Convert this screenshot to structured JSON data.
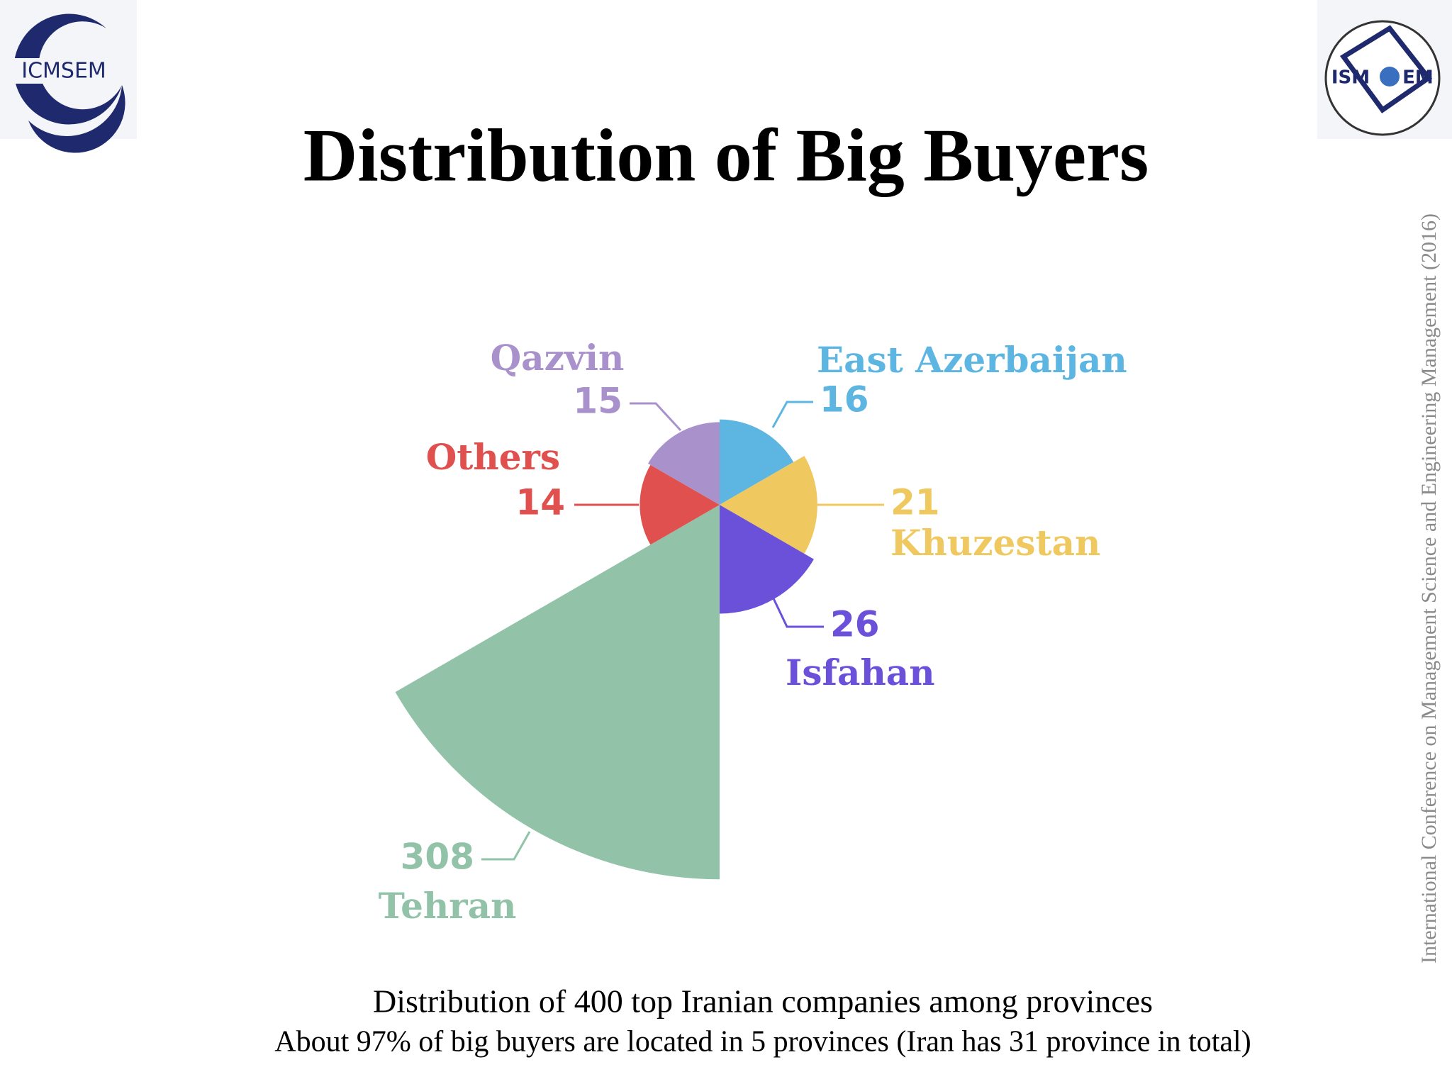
{
  "logo_left": {
    "text": "ICMSEM"
  },
  "logo_right": {
    "text_left": "ISM",
    "text_right": "EM"
  },
  "side_text": "International Conference on Management Science and Engineering Management (2016)",
  "caption": {
    "line1": "Distribution of 400 top Iranian companies among provinces",
    "line2": "About 97% of big buyers are located in 5 provinces (Iran has 31 province in total)"
  },
  "chart_data": {
    "type": "polar-area",
    "title": "Distribution of Big Buyers",
    "categories": [
      "East Azerbaijan",
      "Khuzestan",
      "Isfahan",
      "Tehran",
      "Others",
      "Qazvin"
    ],
    "values": [
      16,
      21,
      26,
      308,
      14,
      15
    ],
    "colors": [
      "#5db5e2",
      "#efc95f",
      "#6b50d9",
      "#92c3a9",
      "#e0504f",
      "#a992cc"
    ]
  }
}
